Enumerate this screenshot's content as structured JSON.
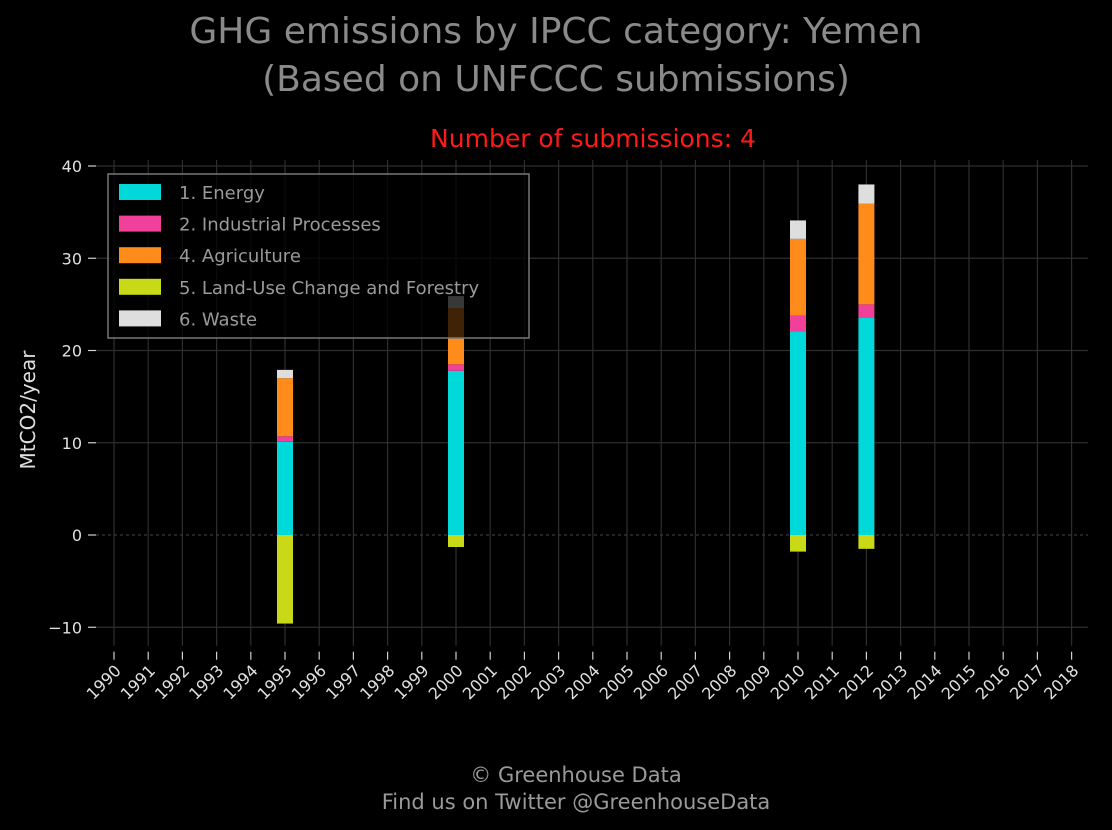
{
  "title_line1": "GHG emissions by IPCC category: Yemen",
  "title_line2": "(Based on UNFCCC submissions)",
  "subtitle": "Number of submissions: 4",
  "footer_line1": "© Greenhouse Data",
  "footer_line2": "Find us on Twitter @GreenhouseData",
  "chart_data": {
    "type": "bar",
    "stacked": true,
    "ylabel": "MtCO2/year",
    "xlabel": "",
    "ylim": [
      -12,
      40
    ],
    "yticks": [
      -10,
      0,
      10,
      20,
      30,
      40
    ],
    "ytick_labels": [
      "−10",
      "0",
      "10",
      "20",
      "30",
      "40"
    ],
    "grid": true,
    "legend_placement": "top-left",
    "categories": [
      "1990",
      "1991",
      "1992",
      "1993",
      "1994",
      "1995",
      "1996",
      "1997",
      "1998",
      "1999",
      "2000",
      "2001",
      "2002",
      "2003",
      "2004",
      "2005",
      "2006",
      "2007",
      "2008",
      "2009",
      "2010",
      "2011",
      "2012",
      "2013",
      "2014",
      "2015",
      "2016",
      "2017",
      "2018"
    ],
    "series": [
      {
        "name": "1. Energy",
        "color": "#00d9d9",
        "values": [
          null,
          null,
          null,
          null,
          null,
          10.1,
          null,
          null,
          null,
          null,
          17.8,
          null,
          null,
          null,
          null,
          null,
          null,
          null,
          null,
          null,
          22.1,
          null,
          23.6,
          null,
          null,
          null,
          null,
          null,
          null
        ]
      },
      {
        "name": "2. Industrial Processes",
        "color": "#f0409a",
        "values": [
          null,
          null,
          null,
          null,
          null,
          0.6,
          null,
          null,
          null,
          null,
          0.7,
          null,
          null,
          null,
          null,
          null,
          null,
          null,
          null,
          null,
          1.7,
          null,
          1.4,
          null,
          null,
          null,
          null,
          null,
          null
        ]
      },
      {
        "name": "4. Agriculture",
        "color": "#ff8c1a",
        "values": [
          null,
          null,
          null,
          null,
          null,
          6.3,
          null,
          null,
          null,
          null,
          6.1,
          null,
          null,
          null,
          null,
          null,
          null,
          null,
          null,
          null,
          8.3,
          null,
          10.9,
          null,
          null,
          null,
          null,
          null,
          null
        ]
      },
      {
        "name": "5. Land-Use Change and Forestry",
        "color": "#c8d918",
        "values": [
          null,
          null,
          null,
          null,
          null,
          -9.6,
          null,
          null,
          null,
          null,
          -1.3,
          null,
          null,
          null,
          null,
          null,
          null,
          null,
          null,
          null,
          -1.8,
          null,
          -1.5,
          null,
          null,
          null,
          null,
          null,
          null
        ]
      },
      {
        "name": "6. Waste",
        "color": "#dedede",
        "values": [
          null,
          null,
          null,
          null,
          null,
          0.9,
          null,
          null,
          null,
          null,
          1.3,
          null,
          null,
          null,
          null,
          null,
          null,
          null,
          null,
          null,
          2.0,
          null,
          2.1,
          null,
          null,
          null,
          null,
          null,
          null
        ]
      }
    ]
  }
}
